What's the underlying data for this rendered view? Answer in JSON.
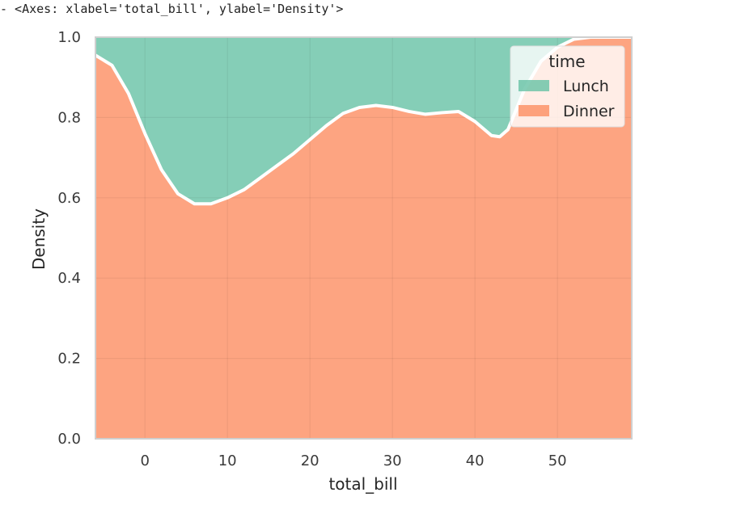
{
  "output_header": "- <Axes: xlabel='total_bill', ylabel='Density'>",
  "colors": {
    "lunch": "#66c2a5",
    "dinner": "#fc8d62",
    "grid": "#e0dcd8",
    "frame": "#cfcfcf",
    "separator": "#ffffff"
  },
  "chart_data": {
    "type": "area",
    "stacked": true,
    "normalized": true,
    "xlabel": "total_bill",
    "ylabel": "Density",
    "xlim": [
      -6,
      59
    ],
    "ylim": [
      0,
      1
    ],
    "x_ticks": [
      0,
      10,
      20,
      30,
      40,
      50
    ],
    "y_ticks": [
      0.0,
      0.2,
      0.4,
      0.6,
      0.8,
      1.0
    ],
    "y_tick_labels": [
      "0.0",
      "0.2",
      "0.4",
      "0.6",
      "0.8",
      "1.0"
    ],
    "grid": true,
    "legend": {
      "title": "time",
      "placement": "top-right",
      "entries": [
        "Lunch",
        "Dinner"
      ]
    },
    "x": [
      -6,
      -4,
      -2,
      0,
      2,
      4,
      6,
      8,
      10,
      12,
      14,
      16,
      18,
      20,
      22,
      24,
      26,
      28,
      30,
      32,
      34,
      36,
      38,
      40,
      42,
      43,
      44,
      46,
      48,
      50,
      52,
      54,
      56,
      58,
      59
    ],
    "series": [
      {
        "name": "Dinner",
        "values": [
          0.955,
          0.93,
          0.86,
          0.76,
          0.67,
          0.61,
          0.585,
          0.585,
          0.6,
          0.62,
          0.65,
          0.68,
          0.71,
          0.745,
          0.78,
          0.81,
          0.825,
          0.83,
          0.825,
          0.815,
          0.808,
          0.812,
          0.815,
          0.79,
          0.755,
          0.752,
          0.77,
          0.87,
          0.94,
          0.975,
          0.995,
          1.0,
          1.0,
          1.0,
          1.0
        ]
      },
      {
        "name": "Lunch",
        "values": [
          0.045,
          0.07,
          0.14,
          0.24,
          0.33,
          0.39,
          0.415,
          0.415,
          0.4,
          0.38,
          0.35,
          0.32,
          0.29,
          0.255,
          0.22,
          0.19,
          0.175,
          0.17,
          0.175,
          0.185,
          0.192,
          0.188,
          0.185,
          0.21,
          0.245,
          0.248,
          0.23,
          0.13,
          0.06,
          0.025,
          0.005,
          0.0,
          0.0,
          0.0,
          0.0
        ]
      }
    ]
  }
}
